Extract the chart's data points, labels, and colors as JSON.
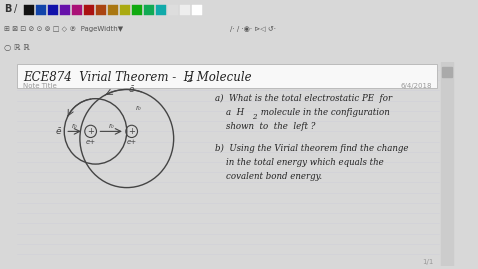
{
  "bg_color": "#d8d8d8",
  "toolbar_bg": "#e8e8e8",
  "page_bg": "#ffffff",
  "page_line_color": "#d0d0d8",
  "title_text": "ECE874  Virial Theorem -  H",
  "title_sub": "2",
  "title_end": " Molecule",
  "note_title": "Note Title",
  "date": "6/4/2018",
  "text_color": "#222222",
  "gray_text": "#999999",
  "circle_color": "#444444",
  "toolbar_colors": [
    "#111111",
    "#1144aa",
    "#1111aa",
    "#6611aa",
    "#aa1177",
    "#aa1111",
    "#aa4411",
    "#aa7711",
    "#aaaa11",
    "#11aa11",
    "#11aa55",
    "#11aaaa",
    "#dddddd",
    "#eeeeee",
    "#ffffff",
    "#eeeeee",
    "#eeeeee",
    "#eeeeee"
  ],
  "qa1": "a)  What is the total electrostatic PE for",
  "qa2": "     a  H₂ molecule in the configuration",
  "qa3": "     shown  to  the  left ?",
  "qb1": "b)  Using the Virial theorem find the change",
  "qb2": "     in the total energy which equals the",
  "qb3": "     covalent bond energy.",
  "page_number": "1/1"
}
